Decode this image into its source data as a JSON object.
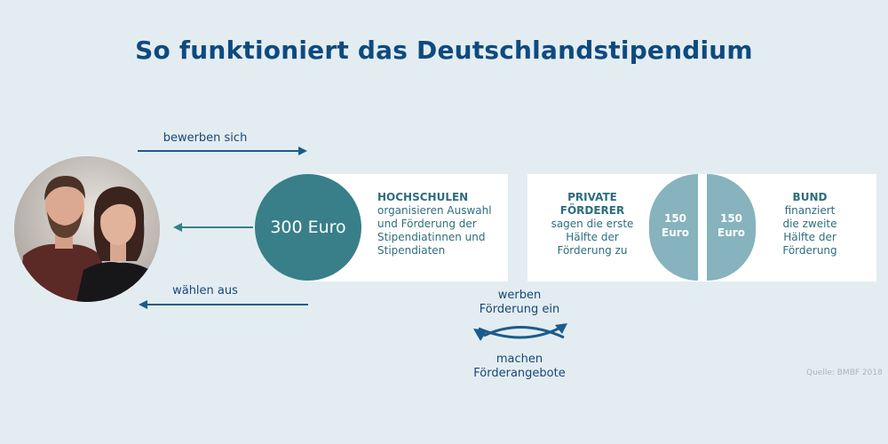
{
  "title": "So funktioniert das Deutschlandstipendium",
  "arrows": {
    "apply": "bewerben sich",
    "select": "wählen aus"
  },
  "amount": "300 Euro",
  "hochschulen": {
    "head": "HOCHSCHULEN",
    "line1": "organisieren Auswahl",
    "line2": "und Förderung der",
    "line3": "Stipendiatinnen und",
    "line4": "Stipendiaten"
  },
  "private": {
    "head1": "PRIVATE",
    "head2": "FÖRDERER",
    "line1": "sagen die erste",
    "line2": "Hälfte der",
    "line3": "Förderung zu",
    "amount1": "150",
    "amount2": "Euro"
  },
  "bund": {
    "head": "BUND",
    "line1": "finanziert",
    "line2": "die zweite",
    "line3": "Hälfte der",
    "line4": "Förderung",
    "amount1": "150",
    "amount2": "Euro"
  },
  "exchange": {
    "top1": "werben",
    "top2": "Förderung ein",
    "bottom1": "machen",
    "bottom2": "Förderangebote"
  },
  "source": "Quelle: BMBF 2018",
  "colors": {
    "background": "#e3edf1",
    "title": "#0e4a80",
    "teal_dark": "#387f89",
    "teal_light": "#86b3bd",
    "arrow": "#1a5c8c"
  }
}
